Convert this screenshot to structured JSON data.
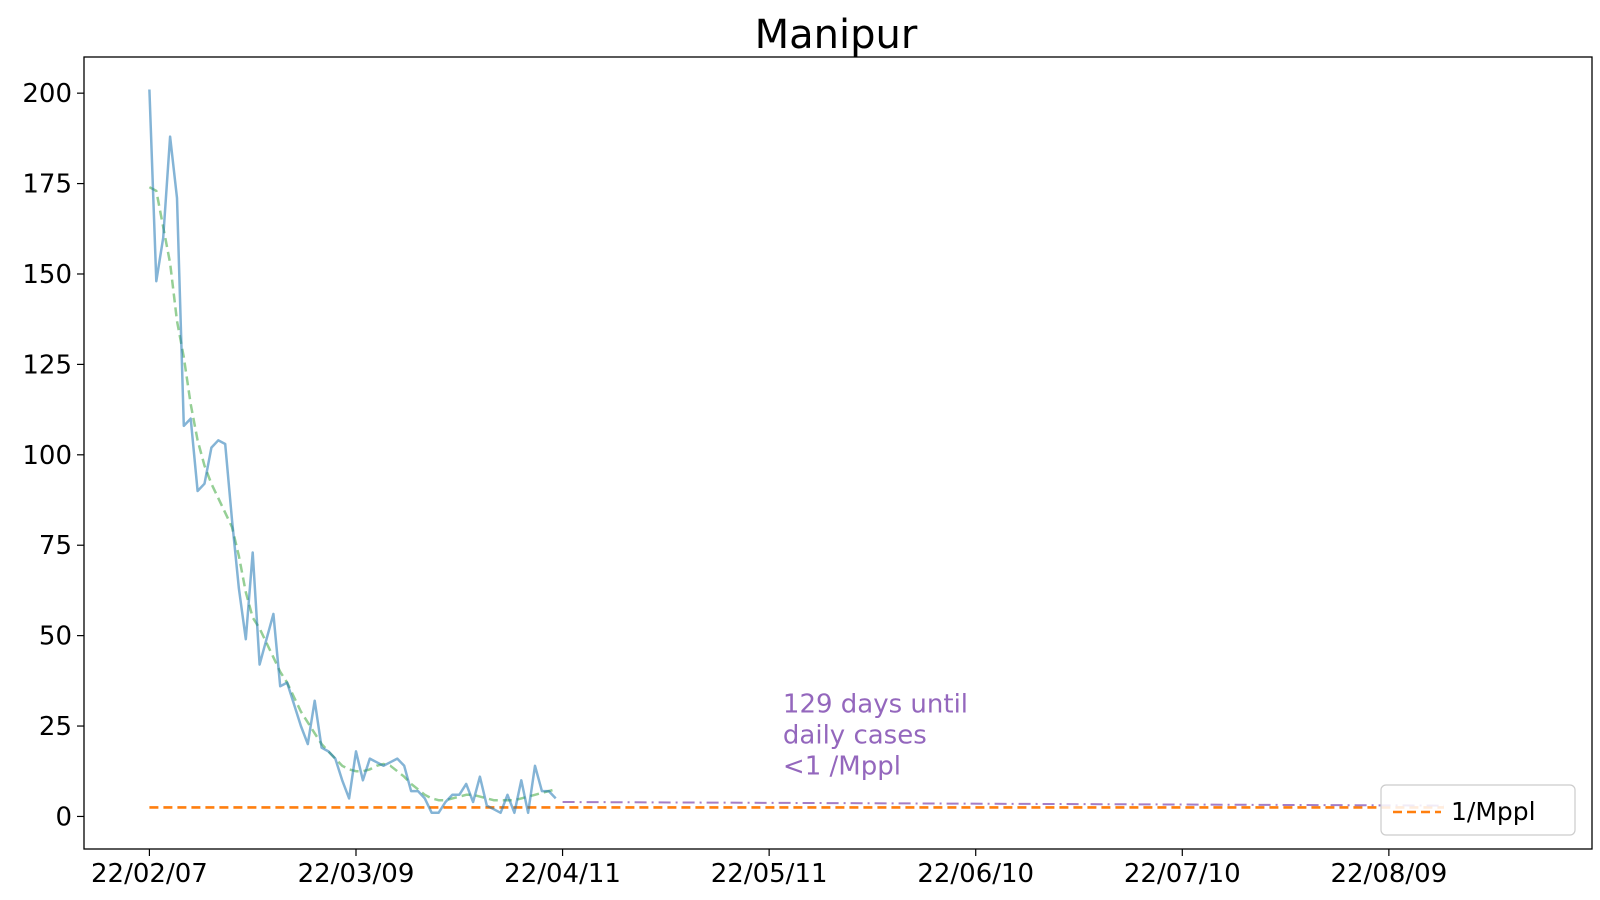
{
  "chart_data": {
    "type": "line",
    "title": "Manipur",
    "xlabel": "",
    "ylabel": "",
    "x_ticks": [
      "22/02/07",
      "22/03/09",
      "22/04/11",
      "22/05/11",
      "22/06/10",
      "22/07/10",
      "22/08/09"
    ],
    "y_ticks": [
      "0",
      "25",
      "50",
      "75",
      "100",
      "125",
      "150",
      "175",
      "200"
    ],
    "ylim": [
      -9,
      210
    ],
    "x_range_days": [
      -9.5,
      209.5
    ],
    "start_date": "22/02/07",
    "grid": false,
    "series": [
      {
        "name": "",
        "style": "solid",
        "color": "#1f77b4",
        "x": [
          0,
          1,
          2,
          3,
          4,
          5,
          6,
          7,
          8,
          9,
          10,
          11,
          12,
          13,
          14,
          15,
          16,
          17,
          18,
          19,
          20,
          21,
          22,
          23,
          24,
          25,
          26,
          27,
          28,
          29,
          30,
          31,
          32,
          33,
          34,
          35,
          36,
          37,
          38,
          39,
          40,
          41,
          42,
          43,
          44,
          45,
          46,
          47,
          48,
          49,
          50,
          51,
          52,
          53,
          54,
          55,
          56,
          57,
          58,
          59
        ],
        "values": [
          201,
          148,
          160,
          188,
          171,
          108,
          110,
          90,
          92,
          102,
          104,
          103,
          82,
          63,
          49,
          73,
          42,
          49,
          56,
          36,
          37,
          31,
          25,
          20,
          32,
          19,
          18,
          16,
          10,
          5,
          18,
          10,
          16,
          15,
          14,
          15,
          16,
          14,
          7,
          7,
          5,
          1,
          1,
          4,
          6,
          6,
          9,
          4,
          11,
          3,
          2,
          1,
          6,
          1,
          10,
          1,
          14,
          7,
          7,
          5
        ]
      },
      {
        "name": "",
        "style": "dashed",
        "color": "#2ca02c",
        "x": [
          0,
          1,
          2,
          3,
          4,
          5,
          6,
          7,
          8,
          9,
          10,
          11,
          12,
          13,
          14,
          15,
          16,
          17,
          18,
          19,
          20,
          21,
          22,
          23,
          24,
          25,
          26,
          27,
          28,
          29,
          30,
          31,
          32,
          33,
          34,
          35,
          36,
          37,
          38,
          39,
          40,
          41,
          42,
          43,
          44,
          45,
          46,
          47,
          48,
          49,
          50,
          51,
          52,
          53,
          54,
          55,
          56,
          57,
          58,
          59
        ],
        "values": [
          174,
          173,
          163,
          153,
          137,
          127,
          114,
          104,
          97,
          92,
          88,
          84,
          80,
          72,
          62,
          55,
          52,
          48,
          44,
          40,
          37,
          33,
          29,
          26,
          23,
          20,
          18,
          16,
          14,
          13,
          12.5,
          12.5,
          13,
          14,
          14.5,
          14,
          12.5,
          11,
          9,
          7.5,
          6,
          5,
          4.5,
          4.5,
          5,
          5.5,
          6,
          6,
          5.5,
          5,
          4.5,
          4.5,
          4.5,
          4.5,
          5,
          5.5,
          6,
          6.5,
          7,
          7.5
        ]
      },
      {
        "name": "",
        "style": "dashdot",
        "color": "#9467bd",
        "x": [
          60,
          188
        ],
        "values": [
          4,
          3
        ]
      },
      {
        "name": "1/Mppl",
        "style": "dashed",
        "color": "#ff7f0e",
        "x": [
          0,
          188
        ],
        "values": [
          2.5,
          2.5
        ]
      }
    ],
    "annotation": {
      "lines": [
        "129 days until",
        "daily cases",
        "<1 /Mppl"
      ],
      "color": "#9467bd",
      "x": 92,
      "y": 10
    },
    "legend": {
      "position": "lower-right",
      "entries": [
        "1/Mppl"
      ]
    }
  }
}
